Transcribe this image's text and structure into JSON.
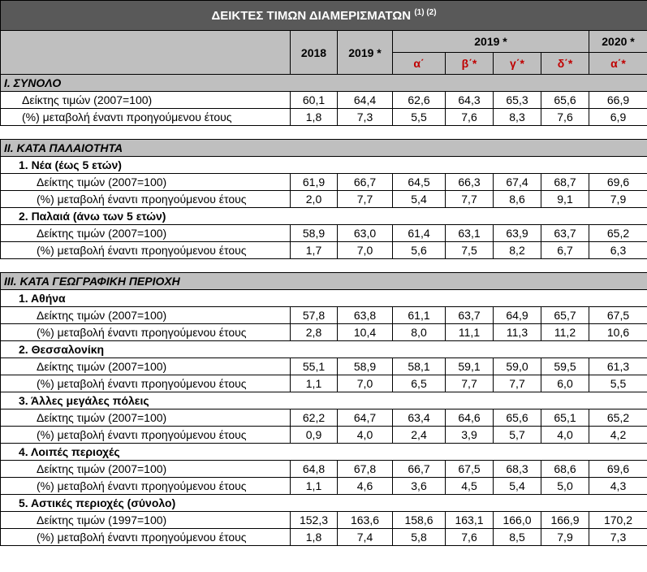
{
  "title": "ΔΕΙΚΤΕΣ ΤΙΜΩΝ ΔΙΑΜΕΡΙΣΜΑΤΩΝ",
  "title_note": "(1) (2)",
  "header": {
    "years": [
      "2018",
      "2019 *"
    ],
    "group_2019": "2019 *",
    "quarters_2019": [
      "α΄",
      "β΄*",
      "γ΄*",
      "δ΄*"
    ],
    "group_2020": "2020 *",
    "quarters_2020": [
      "α΄*"
    ]
  },
  "sections": [
    {
      "title": "I. ΣΥΝΟΛΟ",
      "rows": [
        {
          "label": "Δείκτης τιμών (2007=100)",
          "values": [
            "60,1",
            "64,4",
            "62,6",
            "64,3",
            "65,3",
            "65,6",
            "66,9"
          ]
        },
        {
          "label": "(%) μεταβολή έναντι προηγούμενου έτους",
          "values": [
            "1,8",
            "7,3",
            "5,5",
            "7,6",
            "8,3",
            "7,6",
            "6,9"
          ]
        }
      ]
    },
    {
      "title": "II. ΚΑΤΑ ΠΑΛΑΙΟΤΗΤΑ",
      "groups": [
        {
          "title": "1.  Νέα (έως 5 ετών)",
          "rows": [
            {
              "label": "Δείκτης τιμών (2007=100)",
              "values": [
                "61,9",
                "66,7",
                "64,5",
                "66,3",
                "67,4",
                "68,7",
                "69,6"
              ]
            },
            {
              "label": "(%) μεταβολή έναντι προηγούμενου έτους",
              "values": [
                "2,0",
                "7,7",
                "5,4",
                "7,7",
                "8,6",
                "9,1",
                "7,9"
              ]
            }
          ]
        },
        {
          "title": "2. Παλαιά (άνω των 5 ετών)",
          "rows": [
            {
              "label": "Δείκτης τιμών (2007=100)",
              "values": [
                "58,9",
                "63,0",
                "61,4",
                "63,1",
                "63,9",
                "63,7",
                "65,2"
              ]
            },
            {
              "label": "(%) μεταβολή έναντι προηγούμενου έτους",
              "values": [
                "1,7",
                "7,0",
                "5,6",
                "7,5",
                "8,2",
                "6,7",
                "6,3"
              ]
            }
          ]
        }
      ]
    },
    {
      "title": "III. ΚΑΤΑ ΓΕΩΓΡΑΦΙΚΗ ΠΕΡΙΟΧΗ",
      "groups": [
        {
          "title": "1.  Αθήνα",
          "rows": [
            {
              "label": "Δείκτης τιμών (2007=100)",
              "values": [
                "57,8",
                "63,8",
                "61,1",
                "63,7",
                "64,9",
                "65,7",
                "67,5"
              ]
            },
            {
              "label": "(%) μεταβολή έναντι προηγούμενου έτους",
              "values": [
                "2,8",
                "10,4",
                "8,0",
                "11,1",
                "11,3",
                "11,2",
                "10,6"
              ]
            }
          ]
        },
        {
          "title": "2.  Θεσσαλονίκη",
          "rows": [
            {
              "label": "Δείκτης τιμών (2007=100)",
              "values": [
                "55,1",
                "58,9",
                "58,1",
                "59,1",
                "59,0",
                "59,5",
                "61,3"
              ]
            },
            {
              "label": "(%) μεταβολή έναντι προηγούμενου έτους",
              "values": [
                "1,1",
                "7,0",
                "6,5",
                "7,7",
                "7,7",
                "6,0",
                "5,5"
              ]
            }
          ]
        },
        {
          "title": "3.  Άλλες μεγάλες πόλεις",
          "rows": [
            {
              "label": "Δείκτης τιμών (2007=100)",
              "values": [
                "62,2",
                "64,7",
                "63,4",
                "64,6",
                "65,6",
                "65,1",
                "65,2"
              ]
            },
            {
              "label": "(%) μεταβολή έναντι προηγούμενου έτους",
              "values": [
                "0,9",
                "4,0",
                "2,4",
                "3,9",
                "5,7",
                "4,0",
                "4,2"
              ]
            }
          ]
        },
        {
          "title": "4.  Λοιπές περιοχές",
          "rows": [
            {
              "label": "Δείκτης τιμών (2007=100)",
              "values": [
                "64,8",
                "67,8",
                "66,7",
                "67,5",
                "68,3",
                "68,6",
                "69,6"
              ]
            },
            {
              "label": "(%) μεταβολή έναντι προηγούμενου έτους",
              "values": [
                "1,1",
                "4,6",
                "3,6",
                "4,5",
                "5,4",
                "5,0",
                "4,3"
              ]
            }
          ]
        },
        {
          "title": "5.  Αστικές περιοχές (σύνολο)",
          "rows": [
            {
              "label": "Δείκτης τιμών (1997=100)",
              "values": [
                "152,3",
                "163,6",
                "158,6",
                "163,1",
                "166,0",
                "166,9",
                "170,2"
              ]
            },
            {
              "label": "(%) μεταβολή έναντι προηγούμενου έτους",
              "values": [
                "1,8",
                "7,4",
                "5,8",
                "7,6",
                "8,5",
                "7,9",
                "7,3"
              ]
            }
          ]
        }
      ]
    }
  ]
}
